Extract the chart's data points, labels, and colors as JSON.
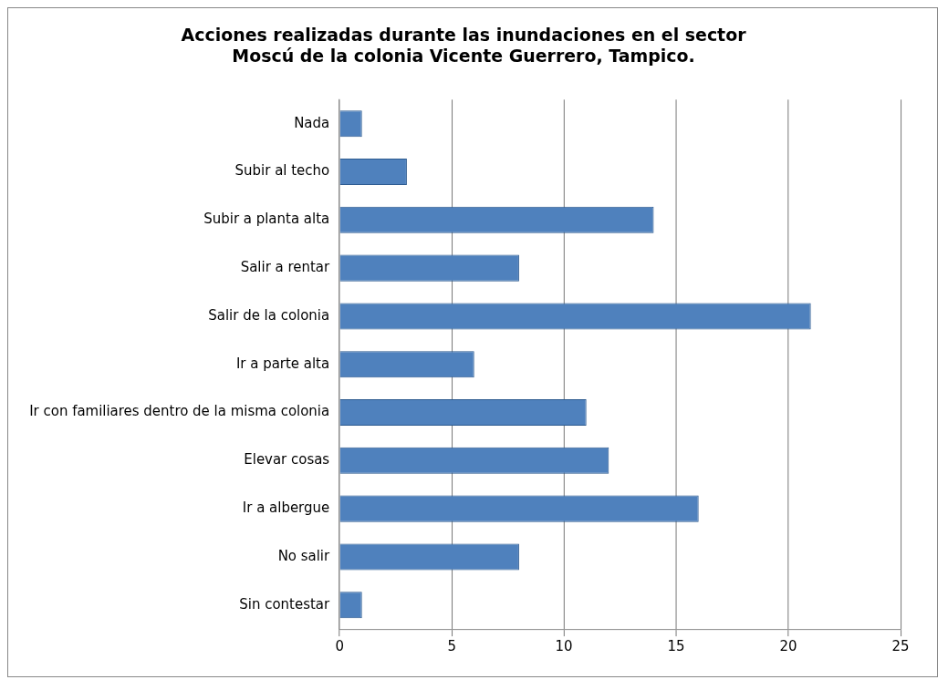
{
  "chart_data": {
    "type": "bar",
    "orientation": "horizontal",
    "title": "Acciones realizadas durante las inundaciones en el sector Moscú de la colonia Vicente Guerrero, Tampico.",
    "categories": [
      "Nada",
      "Subir al techo",
      "Subir a planta alta",
      "Salir a rentar",
      "Salir de la colonia",
      "Ir a parte alta",
      "Ir con familiares dentro de la misma colonia",
      "Elevar cosas",
      "Ir a albergue",
      "No salir",
      "Sin contestar"
    ],
    "values": [
      1,
      3,
      14,
      8,
      21,
      6,
      11,
      12,
      16,
      8,
      1
    ],
    "color": "#4f81bd",
    "xlim": [
      0,
      25
    ],
    "xticks": [
      0,
      5,
      10,
      15,
      20,
      25
    ],
    "grid": "x"
  }
}
